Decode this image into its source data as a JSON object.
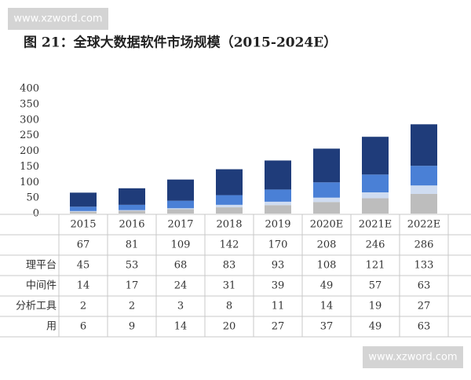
{
  "watermarks": [
    "www.xzword.com",
    "www.xzword.com"
  ],
  "chart_data": {
    "type": "bar",
    "stacked": true,
    "title": "图 21：全球大数据软件市场规模（2015-2024E）",
    "categories": [
      "2015",
      "2016",
      "2017",
      "2018",
      "2019",
      "2020E",
      "2021E",
      "2022E"
    ],
    "totals": [
      67,
      81,
      109,
      142,
      170,
      208,
      246,
      286
    ],
    "series": [
      {
        "name": "理平台",
        "color": "#1f3c7a",
        "values": [
          45,
          53,
          68,
          83,
          93,
          108,
          121,
          133
        ]
      },
      {
        "name": "中间件",
        "color": "#4a80d6",
        "values": [
          14,
          17,
          24,
          31,
          39,
          49,
          57,
          63
        ]
      },
      {
        "name": "分析工具",
        "color": "#cfdcf1",
        "values": [
          2,
          2,
          3,
          8,
          11,
          14,
          19,
          27
        ]
      },
      {
        "name": "用",
        "color": "#bdbdbd",
        "values": [
          6,
          9,
          14,
          20,
          27,
          37,
          49,
          63
        ]
      }
    ],
    "ylim": [
      0,
      400
    ],
    "yticks": [
      0,
      50,
      100,
      150,
      200,
      250,
      300,
      350,
      400
    ]
  }
}
